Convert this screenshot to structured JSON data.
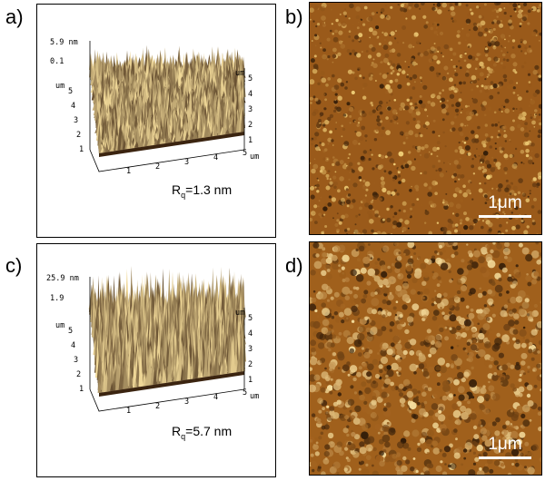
{
  "panels": [
    {
      "id": "a",
      "label": "a)",
      "kind": "3d-topography",
      "z_max_label": "5.9 nm",
      "z_min_label": "0.1",
      "back_axis_unit": "um",
      "back_axis_ticks": [
        "5",
        "4",
        "3",
        "2",
        "1"
      ],
      "left_axis_unit": "um",
      "left_axis_ticks": [
        "5",
        "4",
        "3",
        "2",
        "1"
      ],
      "front_axis_ticks": [
        "1",
        "2",
        "3",
        "4",
        "5"
      ],
      "front_axis_unit": "um",
      "roughness_symbol": "R",
      "roughness_sub": "q",
      "roughness_value": "=1.3 nm",
      "color_low": "#3b2410",
      "color_high": "#f0d898"
    },
    {
      "id": "b",
      "label": "b)",
      "kind": "afm-height-image",
      "scale_bar_label": "1μm",
      "color_low": "#2e1a08",
      "color_mid": "#9a5a1a",
      "color_high": "#f3d27a"
    },
    {
      "id": "c",
      "label": "c)",
      "kind": "3d-topography",
      "z_max_label": "25.9 nm",
      "z_min_label": "1.9",
      "back_axis_unit": "um",
      "back_axis_ticks": [
        "5",
        "4",
        "3",
        "2",
        "1"
      ],
      "left_axis_unit": "um",
      "left_axis_ticks": [
        "5",
        "4",
        "3",
        "2",
        "1"
      ],
      "front_axis_ticks": [
        "1",
        "2",
        "3",
        "4",
        "5"
      ],
      "front_axis_unit": "um",
      "roughness_symbol": "R",
      "roughness_sub": "q",
      "roughness_value": "=5.7 nm",
      "color_low": "#3b2410",
      "color_high": "#f0d898"
    },
    {
      "id": "d",
      "label": "d)",
      "kind": "afm-height-image",
      "scale_bar_label": "1μm",
      "color_low": "#2e1a08",
      "color_mid": "#a0601c",
      "color_high": "#f7e0a0"
    }
  ]
}
